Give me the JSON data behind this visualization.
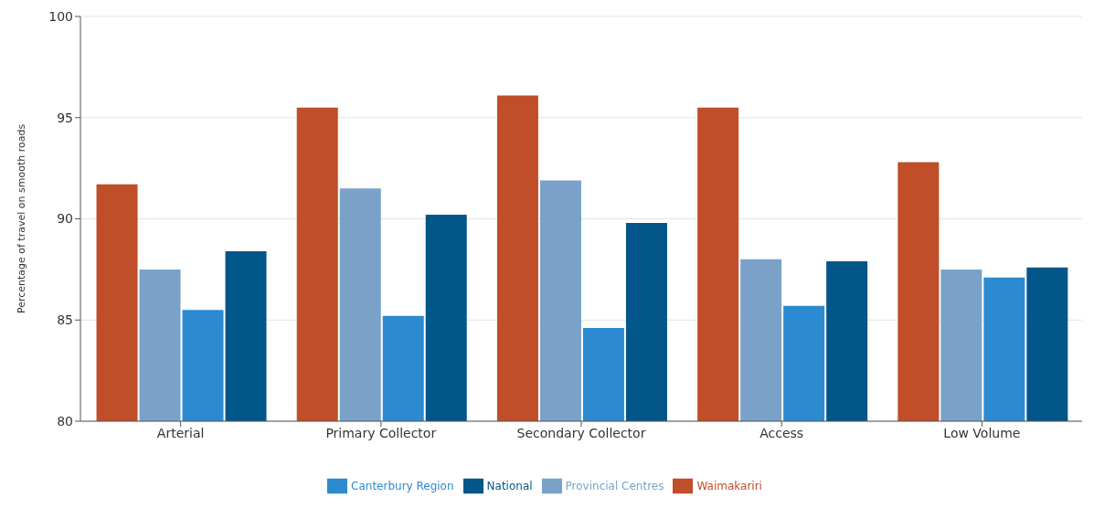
{
  "chart_data": {
    "type": "bar",
    "ylabel": "Percentage of travel on smooth roads",
    "categories": [
      "Arterial",
      "Primary Collector",
      "Secondary Collector",
      "Access",
      "Low Volume"
    ],
    "series": [
      {
        "name": "Waimakariri",
        "color": "#c04e28",
        "values": [
          91.7,
          95.5,
          96.1,
          95.5,
          92.8
        ]
      },
      {
        "name": "Provincial Centres",
        "color": "#7aa2c8",
        "values": [
          87.5,
          91.5,
          91.9,
          88.0,
          87.5
        ]
      },
      {
        "name": "Canterbury Region",
        "color": "#2b8ad0",
        "values": [
          85.5,
          85.2,
          84.6,
          85.7,
          87.1
        ]
      },
      {
        "name": "National",
        "color": "#03568a",
        "values": [
          88.4,
          90.2,
          89.8,
          87.9,
          87.6
        ]
      }
    ],
    "ylim": [
      80,
      100
    ],
    "yticks": [
      80,
      85,
      90,
      95,
      100
    ],
    "grid": "y",
    "legend": "bottom"
  }
}
